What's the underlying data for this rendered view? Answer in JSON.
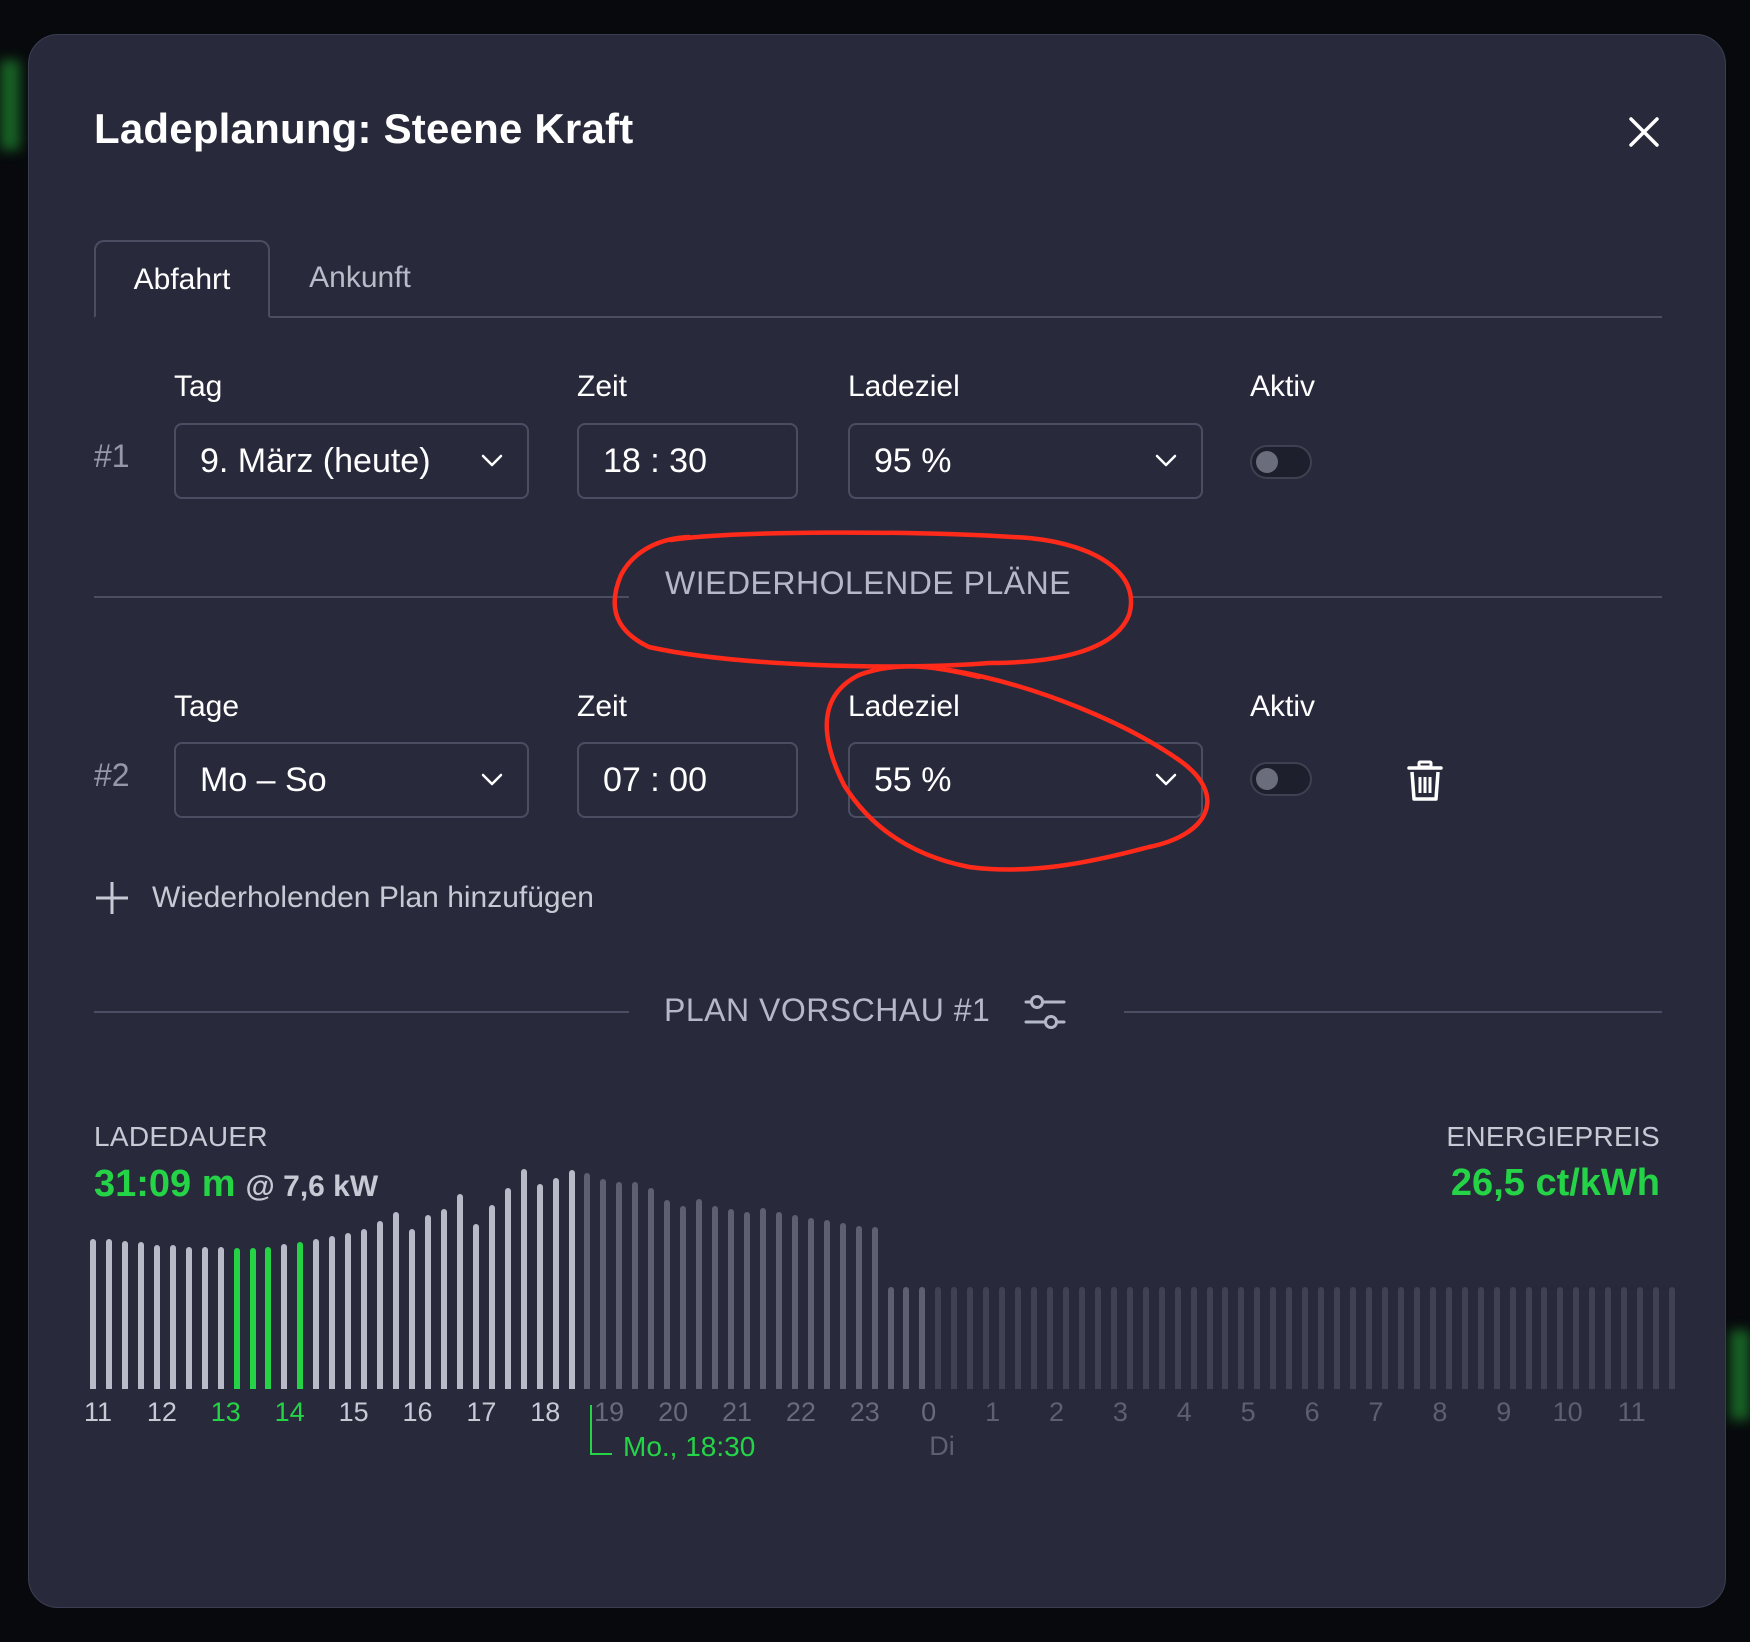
{
  "modal": {
    "title": "Ladeplanung: Steene Kraft"
  },
  "tabs": [
    {
      "label": "Abfahrt",
      "active": true
    },
    {
      "label": "Ankunft",
      "active": false
    }
  ],
  "plan1": {
    "number": "#1",
    "day_label": "Tag",
    "day_value": "9. März (heute)",
    "time_label": "Zeit",
    "time_value": "18 : 30",
    "target_label": "Ladeziel",
    "target_value": "95 %",
    "active_label": "Aktiv",
    "active": false
  },
  "repeating": {
    "section_title": "WIEDERHOLENDE PLÄNE",
    "plan2": {
      "number": "#2",
      "days_label": "Tage",
      "days_value": "Mo – So",
      "time_label": "Zeit",
      "time_value": "07 : 00",
      "target_label": "Ladeziel",
      "target_value": "55 %",
      "active_label": "Aktiv",
      "active": false
    },
    "add_label": "Wiederholenden Plan hinzufügen"
  },
  "preview": {
    "section_title": "PLAN VORSCHAU #1",
    "duration_label": "LADEDAUER",
    "duration_value": "31:09 m",
    "power_value": "@ 7,6 kW",
    "price_label": "ENERGIEPREIS",
    "price_value": "26,5 ct/kWh"
  },
  "colors": {
    "accent_green": "#25d446",
    "annotation_red": "#ff2a1a"
  },
  "chart_data": {
    "type": "bar",
    "x_labels": [
      "11",
      "12",
      "13",
      "14",
      "15",
      "16",
      "17",
      "18",
      "19",
      "20",
      "21",
      "22",
      "23",
      "0",
      "1",
      "2",
      "3",
      "4",
      "5",
      "6",
      "7",
      "8",
      "9",
      "10",
      "11"
    ],
    "highlighted_labels": [
      "13",
      "14"
    ],
    "day_label": "Di",
    "marker_label": "Mo., 18:30",
    "values": [
      100,
      100,
      99,
      98,
      96,
      96,
      95,
      95,
      95,
      94,
      94,
      95,
      97,
      98,
      100,
      102,
      104,
      107,
      112,
      118,
      107,
      116,
      120,
      130,
      110,
      123,
      134,
      147,
      137,
      141,
      146,
      144,
      140,
      138,
      138,
      134,
      126,
      122,
      127,
      122,
      120,
      118,
      121,
      118,
      116,
      114,
      113,
      111,
      109,
      108,
      68,
      68,
      68,
      68,
      68,
      68,
      68,
      68,
      68,
      68,
      68,
      68,
      68,
      68,
      68,
      68,
      68,
      68,
      68,
      68,
      68,
      68,
      68,
      68,
      68,
      68,
      68,
      68,
      68,
      68,
      68,
      68,
      68,
      68,
      68,
      68,
      68,
      68,
      68,
      68,
      68,
      68,
      68,
      68,
      68,
      68,
      68,
      68,
      68,
      68
    ],
    "charging_slots": [
      9,
      10,
      11,
      13
    ],
    "past_marker_index": 31,
    "forecast_start_index": 53
  }
}
